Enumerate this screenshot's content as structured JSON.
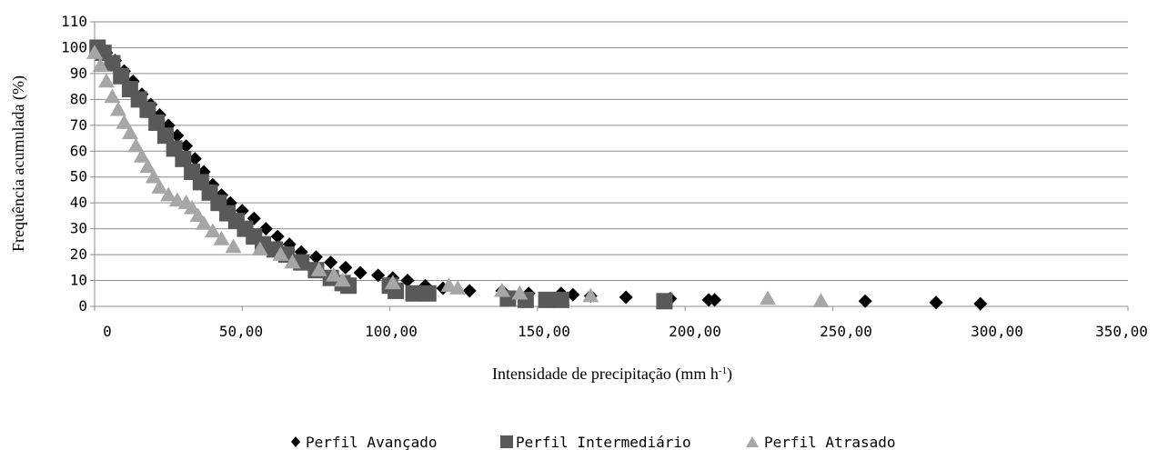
{
  "chart_data": {
    "type": "scatter",
    "xlabel": "Intensidade de precipitação (mm h",
    "xlabel_sup": "-1",
    "xlabel_end": ")",
    "ylabel": "Frequência acumulada (%)",
    "xlim": [
      0,
      350
    ],
    "ylim": [
      0,
      110
    ],
    "x_ticks": [
      0,
      50,
      100,
      150,
      200,
      250,
      300,
      350
    ],
    "x_tick_labels": [
      "0",
      "50,00",
      "100,00",
      "150,00",
      "200,00",
      "250,00",
      "300,00",
      "350,00"
    ],
    "y_ticks": [
      0,
      10,
      20,
      30,
      40,
      50,
      60,
      70,
      80,
      90,
      100,
      110
    ],
    "y_tick_labels": [
      "0",
      "10",
      "20",
      "30",
      "40",
      "50",
      "60",
      "70",
      "80",
      "90",
      "100",
      "110"
    ],
    "grid": "horizontal",
    "legend_position": "bottom",
    "series": [
      {
        "name": "Perfil Avançado",
        "marker": "diamond",
        "color": "#000000",
        "points": [
          [
            1,
            100
          ],
          [
            4,
            98
          ],
          [
            7,
            95
          ],
          [
            10,
            91
          ],
          [
            13,
            87
          ],
          [
            16,
            82
          ],
          [
            19,
            78
          ],
          [
            22,
            74
          ],
          [
            25,
            70
          ],
          [
            28,
            66
          ],
          [
            31,
            62
          ],
          [
            34,
            57
          ],
          [
            37,
            52
          ],
          [
            40,
            47
          ],
          [
            43,
            43
          ],
          [
            46,
            40
          ],
          [
            50,
            37
          ],
          [
            54,
            34
          ],
          [
            58,
            30
          ],
          [
            62,
            27
          ],
          [
            66,
            24
          ],
          [
            70,
            21
          ],
          [
            75,
            19
          ],
          [
            80,
            17
          ],
          [
            85,
            15
          ],
          [
            90,
            13
          ],
          [
            96,
            12
          ],
          [
            101,
            11
          ],
          [
            106,
            10
          ],
          [
            112,
            8
          ],
          [
            118,
            7
          ],
          [
            127,
            6
          ],
          [
            138,
            6
          ],
          [
            147,
            5
          ],
          [
            158,
            5
          ],
          [
            162,
            4.5
          ],
          [
            168,
            4
          ],
          [
            180,
            3.5
          ],
          [
            195,
            3
          ],
          [
            208,
            2.5
          ],
          [
            210,
            2.5
          ],
          [
            261,
            2
          ],
          [
            285,
            1.5
          ],
          [
            300,
            1
          ]
        ]
      },
      {
        "name": "Perfil Intermediário",
        "marker": "square",
        "color": "#595959",
        "points": [
          [
            1,
            100
          ],
          [
            3,
            98
          ],
          [
            6,
            94
          ],
          [
            9,
            89
          ],
          [
            12,
            84
          ],
          [
            15,
            80
          ],
          [
            18,
            76
          ],
          [
            21,
            71
          ],
          [
            24,
            66
          ],
          [
            27,
            61
          ],
          [
            30,
            57
          ],
          [
            33,
            52
          ],
          [
            36,
            48
          ],
          [
            39,
            44
          ],
          [
            42,
            40
          ],
          [
            45,
            36
          ],
          [
            48,
            33
          ],
          [
            51,
            30
          ],
          [
            54,
            27
          ],
          [
            57,
            24
          ],
          [
            61,
            22
          ],
          [
            65,
            20
          ],
          [
            70,
            17
          ],
          [
            75,
            14
          ],
          [
            80,
            11
          ],
          [
            84,
            9
          ],
          [
            86,
            8
          ],
          [
            100,
            8
          ],
          [
            102,
            6
          ],
          [
            108,
            5
          ],
          [
            113,
            5
          ],
          [
            140,
            3
          ],
          [
            146,
            2.5
          ],
          [
            153,
            2.5
          ],
          [
            158,
            2.5
          ],
          [
            193,
            2
          ]
        ]
      },
      {
        "name": "Perfil Atrasado",
        "marker": "triangle",
        "color": "#a6a6a6",
        "points": [
          [
            0,
            98
          ],
          [
            2,
            93
          ],
          [
            4,
            87
          ],
          [
            6,
            81
          ],
          [
            8,
            76
          ],
          [
            10,
            71
          ],
          [
            12,
            67
          ],
          [
            14,
            62
          ],
          [
            16,
            58
          ],
          [
            18,
            54
          ],
          [
            20,
            50
          ],
          [
            22,
            46
          ],
          [
            25,
            43
          ],
          [
            28,
            41
          ],
          [
            31,
            40
          ],
          [
            33,
            38
          ],
          [
            35,
            35
          ],
          [
            37,
            32
          ],
          [
            40,
            29
          ],
          [
            43,
            26
          ],
          [
            47,
            23
          ],
          [
            56,
            22
          ],
          [
            63,
            20
          ],
          [
            67,
            17
          ],
          [
            76,
            14
          ],
          [
            81,
            12
          ],
          [
            84,
            10
          ],
          [
            101,
            9
          ],
          [
            120,
            8
          ],
          [
            123,
            7
          ],
          [
            138,
            6
          ],
          [
            144,
            5
          ],
          [
            168,
            4
          ],
          [
            228,
            3
          ],
          [
            246,
            2
          ]
        ]
      }
    ]
  }
}
